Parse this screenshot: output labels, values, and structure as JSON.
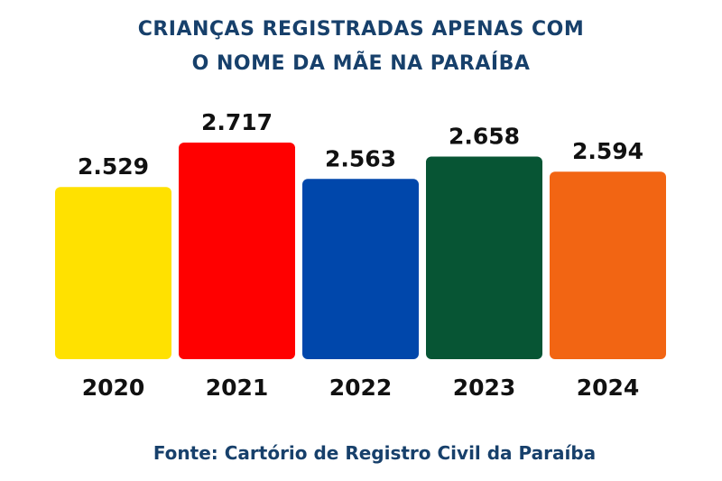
{
  "title_lines": [
    "CRIANÇAS REGISTRADAS APENAS COM",
    "O NOME DA MÃE NA PARAÍBA"
  ],
  "source": "Fonte: Cartório de Registro Civil da Paraíba",
  "chart_data": {
    "type": "bar",
    "title": "CRIANÇAS REGISTRADAS APENAS COM O NOME DA MÃE NA PARAÍBA",
    "categories": [
      "2020",
      "2021",
      "2022",
      "2023",
      "2024"
    ],
    "values": [
      2529,
      2717,
      2563,
      2658,
      2594
    ],
    "value_labels": [
      "2.529",
      "2.717",
      "2.563",
      "2.658",
      "2.594"
    ],
    "colors": [
      "#ffe100",
      "#ff0000",
      "#0047ab",
      "#075534",
      "#f26513"
    ],
    "grid": false,
    "legend": "none"
  }
}
